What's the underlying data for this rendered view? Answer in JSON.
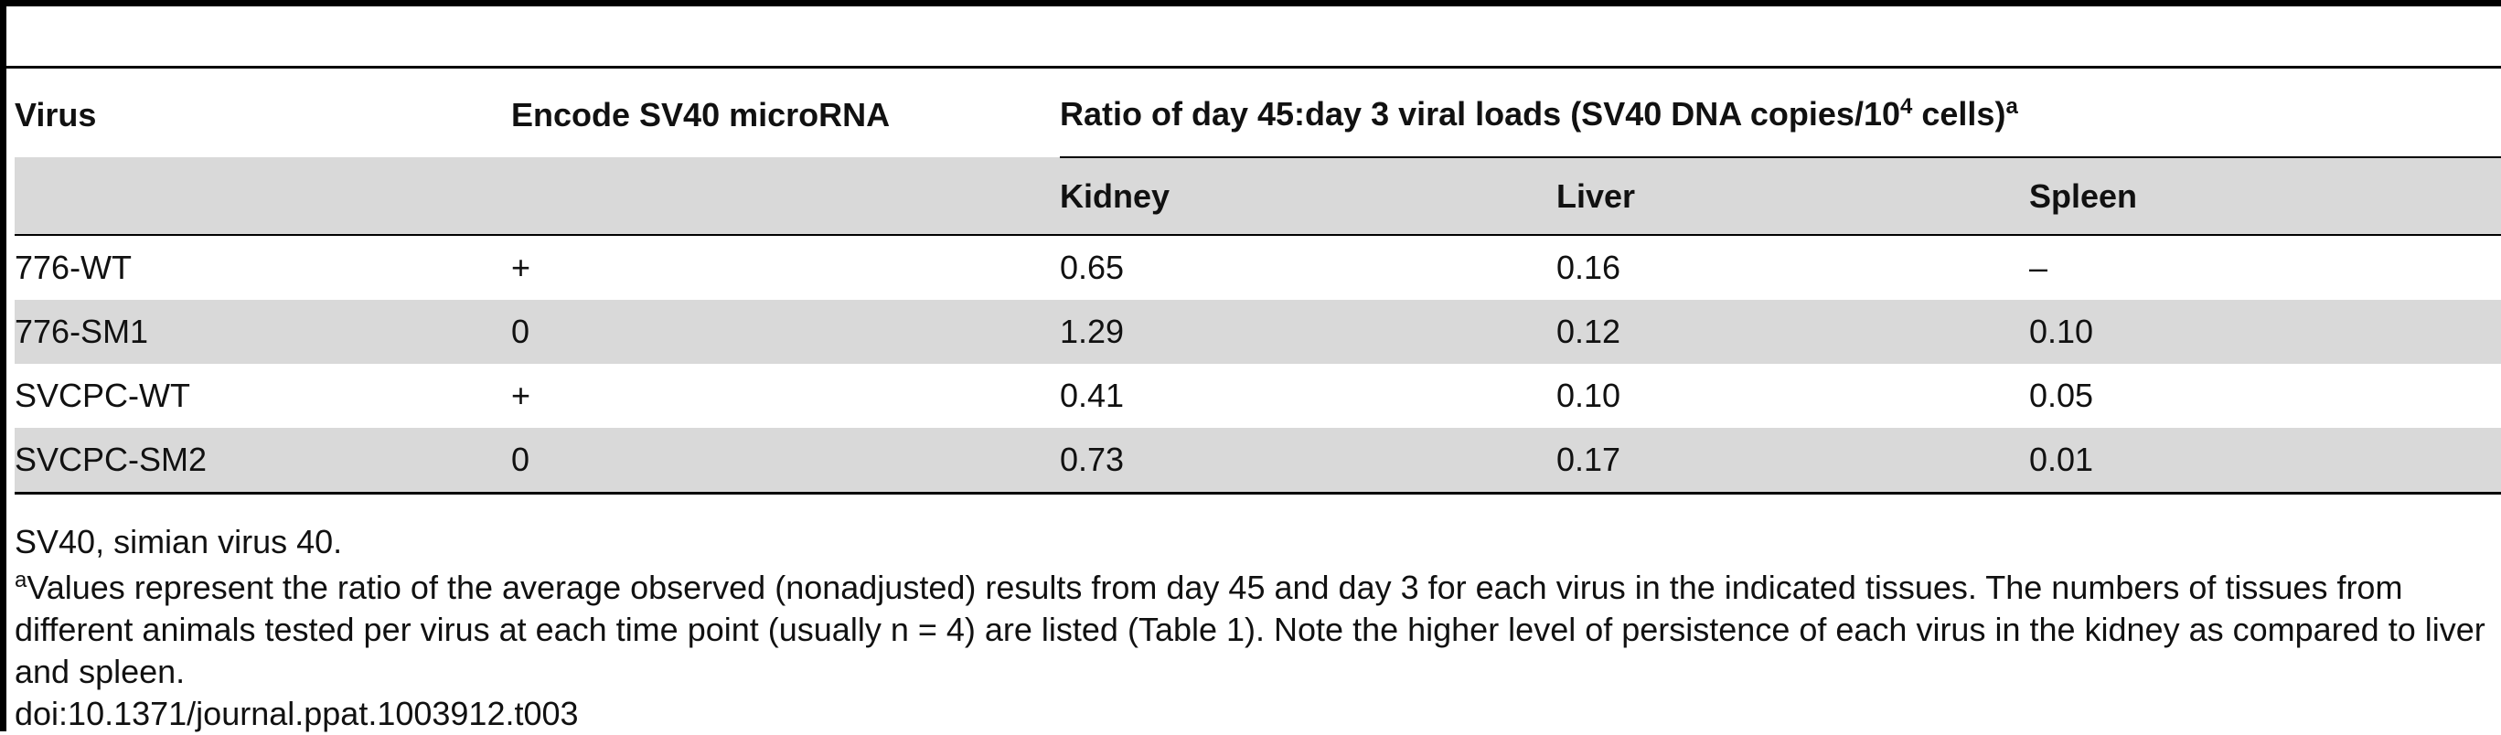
{
  "table": {
    "headers": {
      "virus": "Virus",
      "mirna": "Encode SV40 microRNA",
      "ratio_prefix": "Ratio of day 45:day 3 viral loads (SV40 DNA copies/10",
      "ratio_exponent": "4",
      "ratio_suffix": " cells)",
      "ratio_footnote_mark": "a",
      "kidney": "Kidney",
      "liver": "Liver",
      "spleen": "Spleen"
    },
    "rows": [
      {
        "virus": "776-WT",
        "mirna": "+",
        "kidney": "0.65",
        "liver": "0.16",
        "spleen": "–"
      },
      {
        "virus": "776-SM1",
        "mirna": "0",
        "kidney": "1.29",
        "liver": "0.12",
        "spleen": "0.10"
      },
      {
        "virus": "SVCPC-WT",
        "mirna": "+",
        "kidney": "0.41",
        "liver": "0.10",
        "spleen": "0.05"
      },
      {
        "virus": "SVCPC-SM2",
        "mirna": "0",
        "kidney": "0.73",
        "liver": "0.17",
        "spleen": "0.01"
      }
    ]
  },
  "notes": {
    "abbreviation": "SV40, simian virus 40.",
    "footnote_mark": "a",
    "footnote_text": "Values represent the ratio of the average observed (nonadjusted) results from day 45 and day 3 for each virus in the indicated tissues. The numbers of tissues from different animals tested per virus at each time point (usually n = 4) are listed (Table 1). Note the higher level of persistence of each virus in the kidney as compared to liver and spleen.",
    "doi": "doi:10.1371/journal.ppat.1003912.t003"
  },
  "colors": {
    "rule": "#000000",
    "row_shade": "#d9d9d9",
    "text": "#111111"
  }
}
